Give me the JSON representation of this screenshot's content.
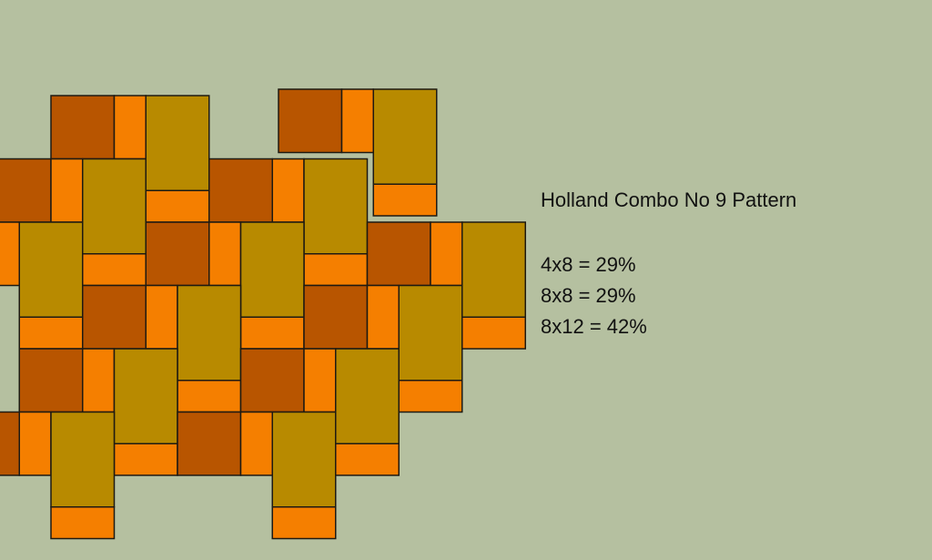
{
  "title": "Holland Combo No 9 Pattern",
  "ratios": [
    "4x8 = 29%",
    "8x8 = 29%",
    "8x12 = 42%"
  ]
}
